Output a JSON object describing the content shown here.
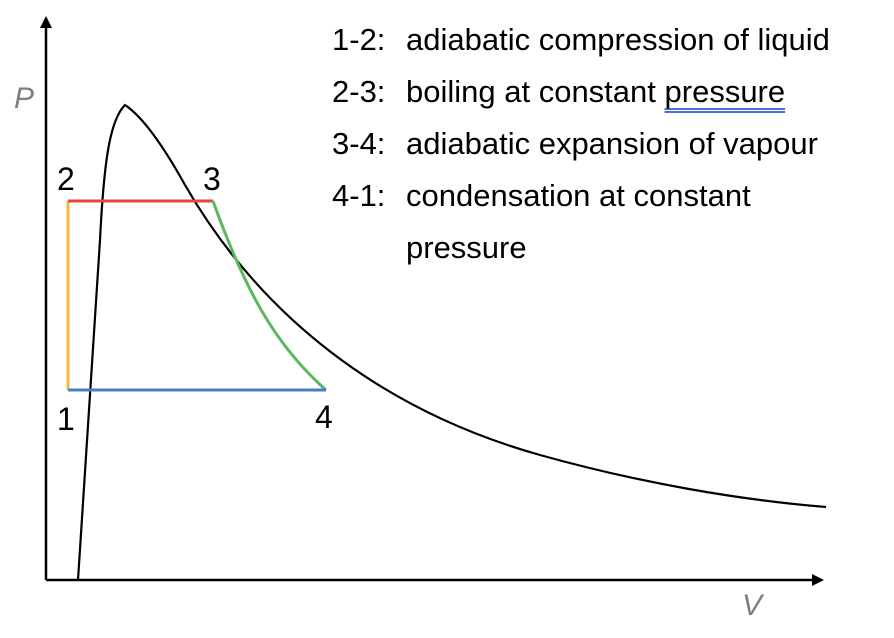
{
  "axes": {
    "y_label": "P",
    "x_label": "V"
  },
  "points": {
    "p1": "1",
    "p2": "2",
    "p3": "3",
    "p4": "4"
  },
  "legend": [
    {
      "step": "1-2:",
      "parts": [
        "adiabatic compression of liquid"
      ]
    },
    {
      "step": "2-3:",
      "parts": [
        "boiling at constant ",
        "pressure"
      ]
    },
    {
      "step": "3-4:",
      "parts": [
        "adiabatic expansion of vapour"
      ]
    },
    {
      "step": "4-1:",
      "parts": [
        "condensation at constant pressure"
      ]
    }
  ],
  "colors": {
    "process_1_2": "#f5b942",
    "process_2_3": "#e8453c",
    "process_3_4": "#5cb85c",
    "process_4_1": "#4a7cc9",
    "saturation_curve": "#000000",
    "axis": "#000000",
    "axis_label": "#7f7f7f"
  }
}
